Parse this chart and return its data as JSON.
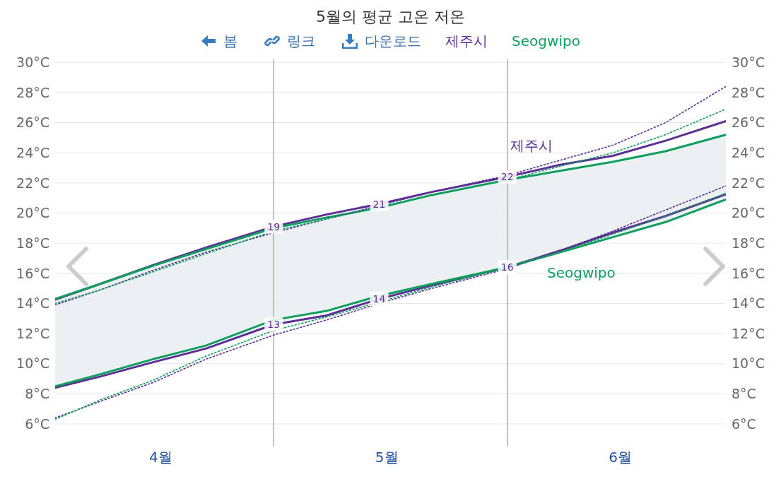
{
  "chart_data": {
    "type": "line",
    "title": "5월의 평균 고온 저온",
    "annotations": [
      "봄",
      "링크",
      "다운로드"
    ],
    "x": [
      "--04-02",
      "--04-08",
      "--04-15",
      "--04-22",
      "--05-01",
      "--05-08",
      "--05-15",
      "--05-22",
      "--06-01",
      "--06-08",
      "--06-15",
      "--06-22",
      "--06-30"
    ],
    "series": [
      {
        "name": "제주시",
        "color": "#5b2f96",
        "values": [
          14.25,
          15.3,
          16.55,
          17.7,
          19.1,
          19.9,
          20.6,
          21.4,
          22.4,
          23.2,
          23.8,
          24.8,
          26.1
        ],
        "value_labels": [
          null,
          null,
          null,
          null,
          "19",
          null,
          "21",
          null,
          "22",
          null,
          null,
          null,
          null
        ]
      },
      {
        "color": "#5b2f96",
        "values": [
          8.4,
          9.15,
          10.1,
          11.0,
          12.6,
          13.2,
          14.3,
          15.2,
          16.4,
          17.5,
          18.7,
          19.8,
          21.25
        ],
        "value_labels": [
          null,
          null,
          null,
          null,
          "13",
          null,
          "14",
          null,
          "16",
          null,
          null,
          null,
          null
        ]
      },
      {
        "color": "#0e9e5e",
        "values": [
          14.3,
          15.3,
          16.5,
          17.6,
          19.0,
          19.7,
          20.35,
          21.2,
          22.2,
          22.8,
          23.4,
          24.1,
          25.2
        ],
        "lower": [
          8.5,
          9.3,
          10.3,
          11.2,
          12.9,
          13.5,
          14.5,
          15.3,
          16.4,
          17.4,
          18.4,
          19.4,
          20.9
        ],
        "upper": [
          14.3,
          15.3,
          16.5,
          17.6,
          19.0,
          19.7,
          20.35,
          21.2,
          22.2,
          22.8,
          23.4,
          24.1,
          25.2
        ]
      },
      {
        "name": "Seogwipo",
        "color": "#0e9e5e",
        "values": [
          8.5,
          9.3,
          10.3,
          11.2,
          12.9,
          13.5,
          14.5,
          15.3,
          16.4,
          17.4,
          18.4,
          19.4,
          20.9
        ]
      },
      {
        "color": "#5b2f96",
        "line_style": "dotted",
        "values": [
          13.9,
          14.9,
          16.2,
          17.4,
          18.7,
          19.6,
          20.5,
          21.4,
          22.5,
          23.5,
          24.5,
          26.0,
          28.4
        ]
      },
      {
        "color": "#0e9e5e",
        "line_style": "dotted",
        "values": [
          14.0,
          14.9,
          16.1,
          17.3,
          18.8,
          19.6,
          20.4,
          21.2,
          22.2,
          23.1,
          24.0,
          25.2,
          26.9
        ]
      },
      {
        "color": "#5b2f96",
        "line_style": "dotted",
        "values": [
          6.4,
          7.5,
          8.75,
          10.3,
          11.9,
          12.9,
          14.0,
          15.0,
          16.3,
          17.5,
          18.8,
          20.2,
          21.8
        ]
      },
      {
        "color": "#0e9e5e",
        "line_style": "dotted",
        "values": [
          6.3,
          7.6,
          8.9,
          10.5,
          12.2,
          13.1,
          14.1,
          15.1,
          16.4,
          17.4,
          18.6,
          19.8,
          21.3
        ]
      }
    ],
    "xlim": [
      "--04-02",
      "--06-30"
    ],
    "xticks": [
      {
        "value": "--04-16",
        "label": "4월"
      },
      {
        "value": "--05-16",
        "label": "5월"
      },
      {
        "value": "--06-16",
        "label": "6월"
      }
    ],
    "ylim": [
      4.5,
      30.2
    ],
    "yticks": [
      {
        "value": 6,
        "label": "6°C"
      },
      {
        "value": 8,
        "label": "8°C"
      },
      {
        "value": 10,
        "label": "10°C"
      },
      {
        "value": 12,
        "label": "12°C"
      },
      {
        "value": 14,
        "label": "14°C"
      },
      {
        "value": 16,
        "label": "16°C"
      },
      {
        "value": 18,
        "label": "18°C"
      },
      {
        "value": 20,
        "label": "20°C"
      },
      {
        "value": 22,
        "label": "22°C"
      },
      {
        "value": 24,
        "label": "24°C"
      },
      {
        "value": 26,
        "label": "26°C"
      },
      {
        "value": 28,
        "label": "28°C"
      },
      {
        "value": 30,
        "label": "30°C"
      }
    ],
    "y2lim": [
      4.5,
      30.2
    ],
    "y2ticks": [
      {
        "value": 6,
        "label": "6°C"
      },
      {
        "value": 8,
        "label": "8°C"
      },
      {
        "value": 10,
        "label": "10°C"
      },
      {
        "value": 12,
        "label": "12°C"
      },
      {
        "value": 14,
        "label": "14°C"
      },
      {
        "value": 16,
        "label": "16°C"
      },
      {
        "value": 18,
        "label": "18°C"
      },
      {
        "value": 20,
        "label": "20°C"
      },
      {
        "value": 22,
        "label": "22°C"
      },
      {
        "value": 24,
        "label": "24°C"
      },
      {
        "value": 26,
        "label": "26°C"
      },
      {
        "value": 28,
        "label": "28°C"
      },
      {
        "value": 30,
        "label": "30°C"
      }
    ],
    "ref_lines": [
      {
        "axis": "x",
        "value": "--05-01",
        "color": "#999999"
      },
      {
        "axis": "x",
        "value": "--06-01",
        "color": "#999999"
      }
    ],
    "grid": "y",
    "legend": "top"
  }
}
